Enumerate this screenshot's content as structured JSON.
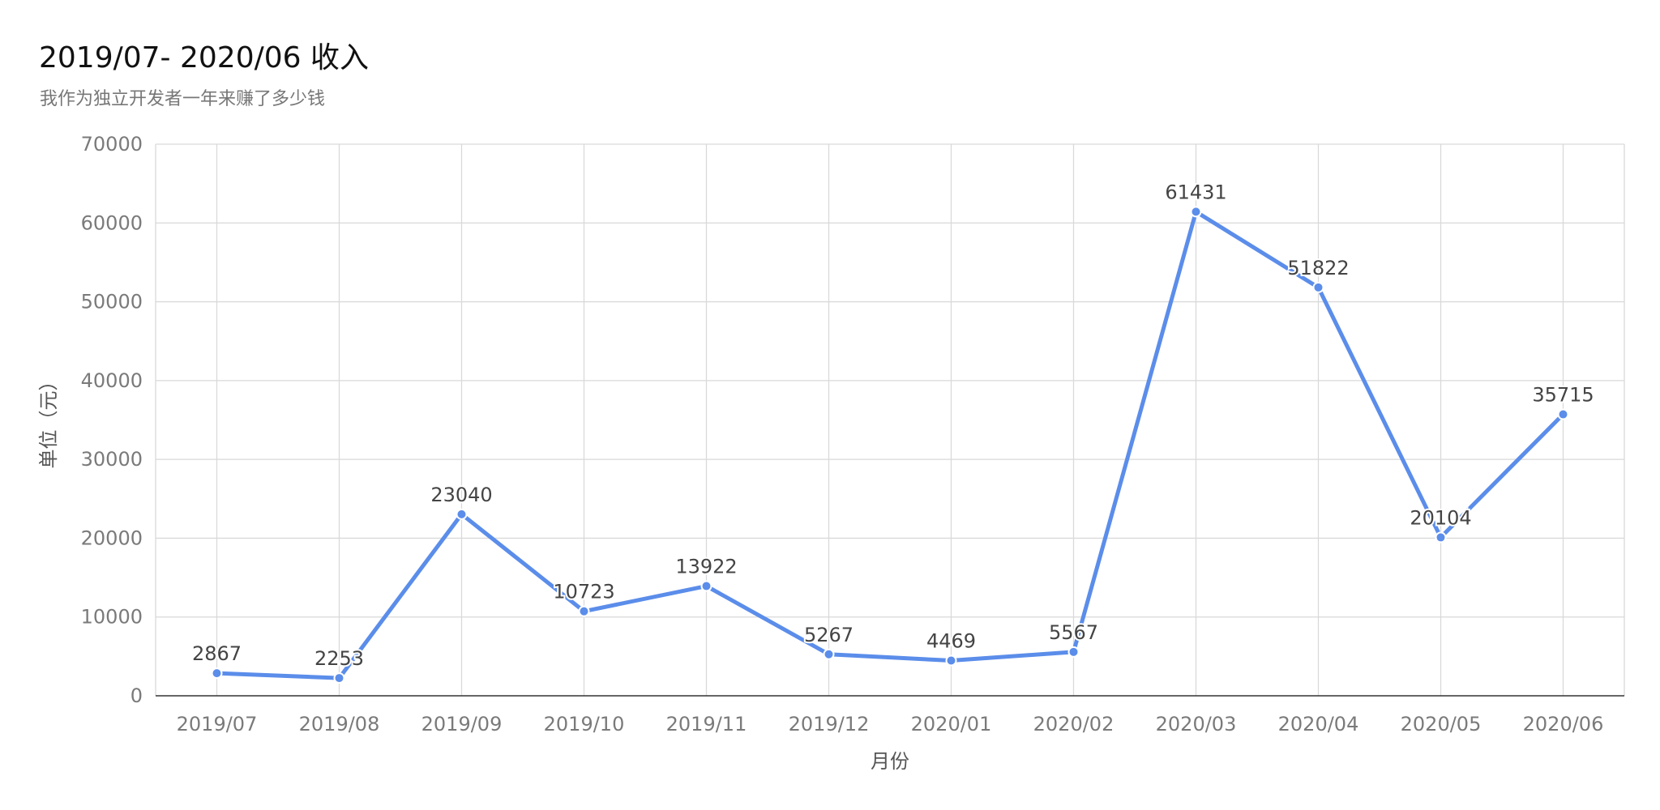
{
  "chart_data": {
    "type": "line",
    "title": "2019/07- 2020/06 收入",
    "subtitle": "我作为独立开发者一年来赚了多少钱",
    "xlabel": "月份",
    "ylabel": "单位（元）",
    "ylim": [
      0,
      70000
    ],
    "yticks": [
      0,
      10000,
      20000,
      30000,
      40000,
      50000,
      60000,
      70000
    ],
    "grid": true,
    "categories": [
      "2019/07",
      "2019/08",
      "2019/09",
      "2019/10",
      "2019/11",
      "2019/12",
      "2020/01",
      "2020/02",
      "2020/03",
      "2020/04",
      "2020/05",
      "2020/06"
    ],
    "series": [
      {
        "values": [
          2867,
          2253,
          23040,
          10723,
          13922,
          5267,
          4469,
          5567,
          61431,
          51822,
          20104,
          35715
        ],
        "color": "#5B8DEA"
      }
    ]
  }
}
